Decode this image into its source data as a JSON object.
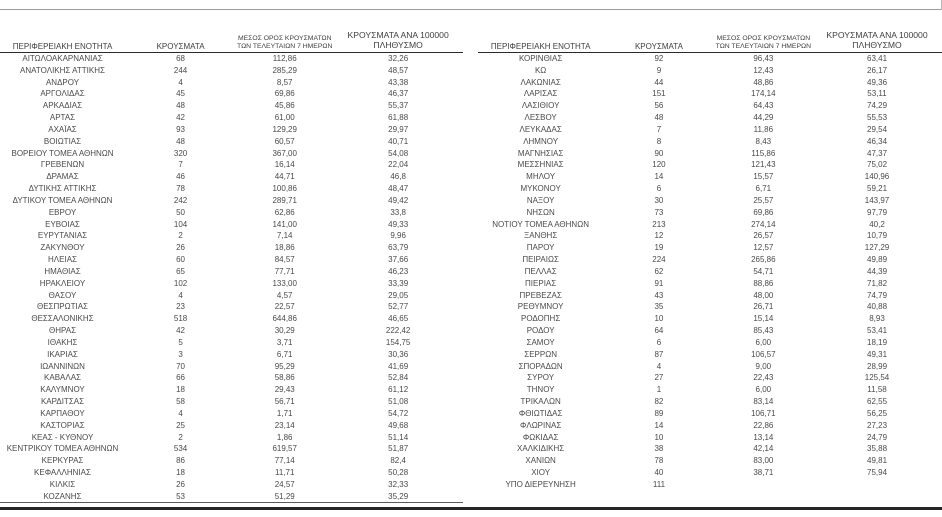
{
  "colors": {
    "text": "#4a4a4a",
    "header_text": "#3f3f3f",
    "rule_light": "#9b9b9b",
    "rule_header": "#2b2b2b",
    "rule_bottom": "#262626",
    "background": "#ffffff"
  },
  "column_headers": {
    "region": "ΠΕΡΙΦΕΡΕΙΑΚΗ ΕΝΟΤΗΤΑ",
    "cases": "ΚΡΟΥΣΜΑΤΑ",
    "avg7_line1": "ΜΕΣΟΣ ΟΡΟΣ ΚΡΟΥΣΜΑΤΩΝ",
    "avg7_line2": "ΤΩΝ ΤΕΛΕΥΤΑΙΩΝ 7 ΗΜΕΡΩΝ",
    "per100k_line1": "ΚΡΟΥΣΜΑΤΑ ΑΝΑ 100000",
    "per100k_line2": "ΠΛΗΘΥΣΜΟ"
  },
  "tables": [
    {
      "rows": [
        [
          "ΑΙΤΩΛΟΑΚΑΡΝΑΝΙΑΣ",
          "68",
          "112,86",
          "32,26"
        ],
        [
          "ΑΝΑΤΟΛΙΚΗΣ ΑΤΤΙΚΗΣ",
          "244",
          "285,29",
          "48,57"
        ],
        [
          "ΑΝΔΡΟΥ",
          "4",
          "8,57",
          "43,38"
        ],
        [
          "ΑΡΓΟΛΙΔΑΣ",
          "45",
          "69,86",
          "46,37"
        ],
        [
          "ΑΡΚΑΔΙΑΣ",
          "48",
          "45,86",
          "55,37"
        ],
        [
          "ΑΡΤΑΣ",
          "42",
          "61,00",
          "61,88"
        ],
        [
          "ΑΧΑΪΑΣ",
          "93",
          "129,29",
          "29,97"
        ],
        [
          "ΒΟΙΩΤΙΑΣ",
          "48",
          "60,57",
          "40,71"
        ],
        [
          "ΒΟΡΕΙΟΥ ΤΟΜΕΑ ΑΘΗΝΩΝ",
          "320",
          "367,00",
          "54,08"
        ],
        [
          "ΓΡΕΒΕΝΩΝ",
          "7",
          "16,14",
          "22,04"
        ],
        [
          "ΔΡΑΜΑΣ",
          "46",
          "44,71",
          "46,8"
        ],
        [
          "ΔΥΤΙΚΗΣ ΑΤΤΙΚΗΣ",
          "78",
          "100,86",
          "48,47"
        ],
        [
          "ΔΥΤΙΚΟΥ ΤΟΜΕΑ ΑΘΗΝΩΝ",
          "242",
          "289,71",
          "49,42"
        ],
        [
          "ΕΒΡΟΥ",
          "50",
          "62,86",
          "33,8"
        ],
        [
          "ΕΥΒΟΙΑΣ",
          "104",
          "141,00",
          "49,33"
        ],
        [
          "ΕΥΡΥΤΑΝΙΑΣ",
          "2",
          "7,14",
          "9,96"
        ],
        [
          "ΖΑΚΥΝΘΟΥ",
          "26",
          "18,86",
          "63,79"
        ],
        [
          "ΗΛΕΙΑΣ",
          "60",
          "84,57",
          "37,66"
        ],
        [
          "ΗΜΑΘΙΑΣ",
          "65",
          "77,71",
          "46,23"
        ],
        [
          "ΗΡΑΚΛΕΙΟΥ",
          "102",
          "133,00",
          "33,39"
        ],
        [
          "ΘΑΣΟΥ",
          "4",
          "4,57",
          "29,05"
        ],
        [
          "ΘΕΣΠΡΩΤΙΑΣ",
          "23",
          "22,57",
          "52,77"
        ],
        [
          "ΘΕΣΣΑΛΟΝΙΚΗΣ",
          "518",
          "644,86",
          "46,65"
        ],
        [
          "ΘΗΡΑΣ",
          "42",
          "30,29",
          "222,42"
        ],
        [
          "ΙΘΑΚΗΣ",
          "5",
          "3,71",
          "154,75"
        ],
        [
          "ΙΚΑΡΙΑΣ",
          "3",
          "6,71",
          "30,36"
        ],
        [
          "ΙΩΑΝΝΙΝΩΝ",
          "70",
          "95,29",
          "41,69"
        ],
        [
          "ΚΑΒΑΛΑΣ",
          "66",
          "58,86",
          "52,84"
        ],
        [
          "ΚΑΛΥΜΝΟΥ",
          "18",
          "29,43",
          "61,12"
        ],
        [
          "ΚΑΡΔΙΤΣΑΣ",
          "58",
          "56,71",
          "51,08"
        ],
        [
          "ΚΑΡΠΑΘΟΥ",
          "4",
          "1,71",
          "54,72"
        ],
        [
          "ΚΑΣΤΟΡΙΑΣ",
          "25",
          "23,14",
          "49,68"
        ],
        [
          "ΚΕΑΣ - ΚΥΘΝΟΥ",
          "2",
          "1,86",
          "51,14"
        ],
        [
          "ΚΕΝΤΡΙΚΟΥ ΤΟΜΕΑ ΑΘΗΝΩΝ",
          "534",
          "619,57",
          "51,87"
        ],
        [
          "ΚΕΡΚΥΡΑΣ",
          "86",
          "77,14",
          "82,4"
        ],
        [
          "ΚΕΦΑΛΛΗΝΙΑΣ",
          "18",
          "11,71",
          "50,28"
        ],
        [
          "ΚΙΛΚΙΣ",
          "26",
          "24,57",
          "32,33"
        ],
        [
          "ΚΟΖΑΝΗΣ",
          "53",
          "51,29",
          "35,29"
        ]
      ]
    },
    {
      "rows": [
        [
          "ΚΟΡΙΝΘΙΑΣ",
          "92",
          "96,43",
          "63,41"
        ],
        [
          "ΚΩ",
          "9",
          "12,43",
          "26,17"
        ],
        [
          "ΛΑΚΩΝΙΑΣ",
          "44",
          "48,86",
          "49,36"
        ],
        [
          "ΛΑΡΙΣΑΣ",
          "151",
          "174,14",
          "53,11"
        ],
        [
          "ΛΑΣΙΘΙΟΥ",
          "56",
          "64,43",
          "74,29"
        ],
        [
          "ΛΕΣΒΟΥ",
          "48",
          "44,29",
          "55,53"
        ],
        [
          "ΛΕΥΚΑΔΑΣ",
          "7",
          "11,86",
          "29,54"
        ],
        [
          "ΛΗΜΝΟΥ",
          "8",
          "8,43",
          "46,34"
        ],
        [
          "ΜΑΓΝΗΣΙΑΣ",
          "90",
          "115,86",
          "47,37"
        ],
        [
          "ΜΕΣΣΗΝΙΑΣ",
          "120",
          "121,43",
          "75,02"
        ],
        [
          "ΜΗΛΟΥ",
          "14",
          "15,57",
          "140,96"
        ],
        [
          "ΜΥΚΟΝΟΥ",
          "6",
          "6,71",
          "59,21"
        ],
        [
          "ΝΑΞΟΥ",
          "30",
          "25,57",
          "143,97"
        ],
        [
          "ΝΗΣΩΝ",
          "73",
          "69,86",
          "97,79"
        ],
        [
          "ΝΟΤΙΟΥ ΤΟΜΕΑ ΑΘΗΝΩΝ",
          "213",
          "274,14",
          "40,2"
        ],
        [
          "ΞΑΝΘΗΣ",
          "12",
          "26,57",
          "10,79"
        ],
        [
          "ΠΑΡΟΥ",
          "19",
          "12,57",
          "127,29"
        ],
        [
          "ΠΕΙΡΑΙΩΣ",
          "224",
          "265,86",
          "49,89"
        ],
        [
          "ΠΕΛΛΑΣ",
          "62",
          "54,71",
          "44,39"
        ],
        [
          "ΠΙΕΡΙΑΣ",
          "91",
          "88,86",
          "71,82"
        ],
        [
          "ΠΡΕΒΕΖΑΣ",
          "43",
          "48,00",
          "74,79"
        ],
        [
          "ΡΕΘΥΜΝΟΥ",
          "35",
          "26,71",
          "40,88"
        ],
        [
          "ΡΟΔΟΠΗΣ",
          "10",
          "15,14",
          "8,93"
        ],
        [
          "ΡΟΔΟΥ",
          "64",
          "85,43",
          "53,41"
        ],
        [
          "ΣΑΜΟΥ",
          "6",
          "6,00",
          "18,19"
        ],
        [
          "ΣΕΡΡΩΝ",
          "87",
          "106,57",
          "49,31"
        ],
        [
          "ΣΠΟΡΑΔΩΝ",
          "4",
          "9,00",
          "28,99"
        ],
        [
          "ΣΥΡΟΥ",
          "27",
          "22,43",
          "125,54"
        ],
        [
          "ΤΗΝΟΥ",
          "1",
          "6,00",
          "11,58"
        ],
        [
          "ΤΡΙΚΑΛΩΝ",
          "82",
          "83,14",
          "62,55"
        ],
        [
          "ΦΘΙΩΤΙΔΑΣ",
          "89",
          "106,71",
          "56,25"
        ],
        [
          "ΦΛΩΡΙΝΑΣ",
          "14",
          "22,86",
          "27,23"
        ],
        [
          "ΦΩΚΙΔΑΣ",
          "10",
          "13,14",
          "24,79"
        ],
        [
          "ΧΑΛΚΙΔΙΚΗΣ",
          "38",
          "42,14",
          "35,88"
        ],
        [
          "ΧΑΝΙΩΝ",
          "78",
          "83,00",
          "49,81"
        ],
        [
          "ΧΙΟΥ",
          "40",
          "38,71",
          "75,94"
        ],
        [
          "ΥΠΟ ΔΙΕΡΕΥΝΗΣΗ",
          "111",
          "",
          ""
        ]
      ]
    }
  ]
}
